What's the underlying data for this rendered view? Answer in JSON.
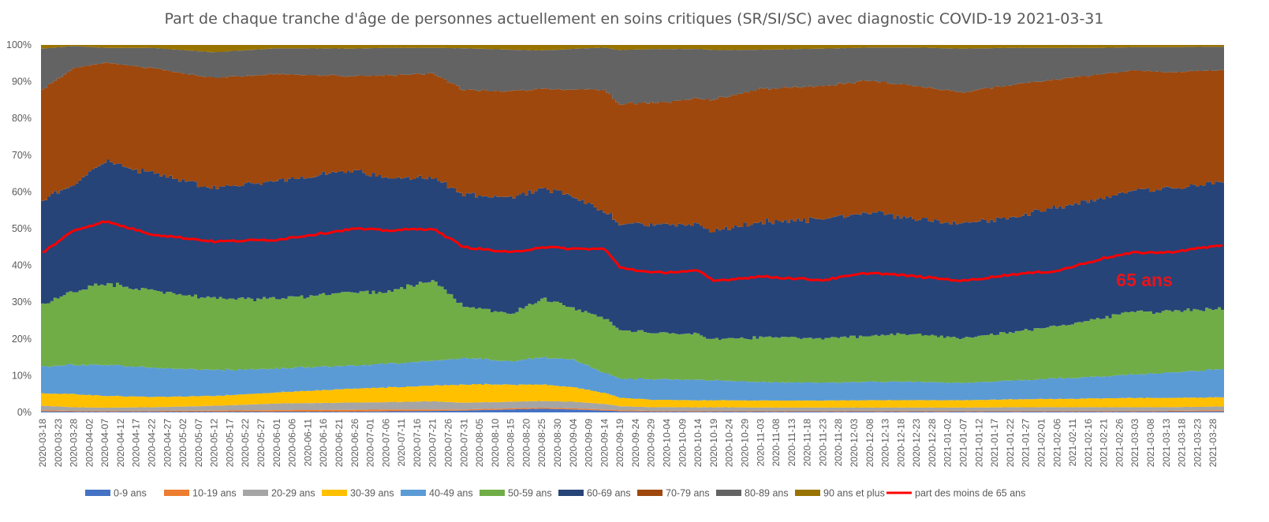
{
  "chart_data": {
    "type": "area",
    "stacked": "percent",
    "title": "Part de chaque tranche d'âge de personnes actuellement en soins critiques (SR/SI/SC) avec diagnostic COVID-19 2021-03-31",
    "xlabel": "",
    "ylabel": "",
    "ylim": [
      0,
      100
    ],
    "y_ticks": [
      "0%",
      "10%",
      "20%",
      "30%",
      "40%",
      "50%",
      "60%",
      "70%",
      "80%",
      "90%",
      "100%"
    ],
    "x_start": "2020-03-18",
    "x_end": "2021-03-31",
    "x_step_days": 5,
    "x_ticks": [
      "2020-03-18",
      "2020-03-23",
      "2020-03-28",
      "2020-04-02",
      "2020-04-07",
      "2020-04-12",
      "2020-04-17",
      "2020-04-22",
      "2020-04-27",
      "2020-05-02",
      "2020-05-07",
      "2020-05-12",
      "2020-05-17",
      "2020-05-22",
      "2020-05-27",
      "2020-06-01",
      "2020-06-06",
      "2020-06-11",
      "2020-06-16",
      "2020-06-21",
      "2020-06-26",
      "2020-07-01",
      "2020-07-06",
      "2020-07-11",
      "2020-07-16",
      "2020-07-21",
      "2020-07-26",
      "2020-07-31",
      "2020-08-05",
      "2020-08-10",
      "2020-08-15",
      "2020-08-20",
      "2020-08-25",
      "2020-08-30",
      "2020-09-04",
      "2020-09-09",
      "2020-09-14",
      "2020-09-19",
      "2020-09-24",
      "2020-09-29",
      "2020-10-04",
      "2020-10-09",
      "2020-10-14",
      "2020-10-19",
      "2020-10-24",
      "2020-10-29",
      "2020-11-03",
      "2020-11-08",
      "2020-11-13",
      "2020-11-18",
      "2020-11-23",
      "2020-11-28",
      "2020-12-03",
      "2020-12-08",
      "2020-12-13",
      "2020-12-18",
      "2020-12-23",
      "2020-12-28",
      "2021-01-02",
      "2021-01-07",
      "2021-01-12",
      "2021-01-17",
      "2021-01-22",
      "2021-01-27",
      "2021-02-01",
      "2021-02-06",
      "2021-02-11",
      "2021-02-16",
      "2021-02-21",
      "2021-02-26",
      "2021-03-03",
      "2021-03-08",
      "2021-03-13",
      "2021-03-18",
      "2021-03-23",
      "2021-03-28"
    ],
    "keypoint_dates": [
      "2020-03-18",
      "2020-03-28",
      "2020-04-07",
      "2020-04-22",
      "2020-05-12",
      "2020-06-01",
      "2020-06-26",
      "2020-07-06",
      "2020-07-21",
      "2020-07-31",
      "2020-08-15",
      "2020-08-25",
      "2020-09-04",
      "2020-09-14",
      "2020-09-19",
      "2020-09-29",
      "2020-10-14",
      "2020-10-19",
      "2020-11-03",
      "2020-11-23",
      "2020-12-08",
      "2020-12-23",
      "2021-01-07",
      "2021-01-22",
      "2021-02-06",
      "2021-02-21",
      "2021-03-03",
      "2021-03-13",
      "2021-03-31"
    ],
    "series": [
      {
        "name": "0-9 ans",
        "color": "#4472c4",
        "type": "area",
        "values": [
          0.3,
          0.2,
          0.2,
          0.2,
          0.2,
          0.2,
          0.2,
          0.3,
          0.4,
          0.5,
          0.8,
          1.0,
          0.8,
          0.5,
          0.3,
          0.2,
          0.2,
          0.2,
          0.2,
          0.2,
          0.2,
          0.2,
          0.2,
          0.2,
          0.2,
          0.2,
          0.2,
          0.2,
          0.3
        ]
      },
      {
        "name": "10-19 ans",
        "color": "#ed7d31",
        "type": "area",
        "values": [
          0.3,
          0.2,
          0.2,
          0.2,
          0.3,
          0.4,
          0.5,
          0.5,
          0.4,
          0.3,
          0.3,
          0.3,
          0.3,
          0.3,
          0.3,
          0.2,
          0.2,
          0.2,
          0.2,
          0.2,
          0.2,
          0.2,
          0.2,
          0.2,
          0.2,
          0.2,
          0.2,
          0.2,
          0.3
        ]
      },
      {
        "name": "20-29 ans",
        "color": "#a5a5a5",
        "type": "area",
        "values": [
          1.2,
          1.0,
          0.9,
          1.0,
          1.3,
          1.8,
          2.0,
          2.0,
          2.2,
          1.8,
          1.8,
          1.8,
          1.8,
          1.5,
          1.1,
          1.0,
          1.0,
          1.0,
          0.9,
          0.9,
          0.9,
          0.9,
          0.9,
          1.0,
          1.0,
          1.0,
          1.0,
          1.0,
          1.0
        ]
      },
      {
        "name": "30-39 ans",
        "color": "#ffc000",
        "type": "area",
        "values": [
          3.4,
          3.6,
          3.2,
          2.8,
          2.7,
          3.0,
          3.8,
          4.0,
          4.3,
          5.0,
          4.7,
          4.5,
          4.0,
          3.0,
          2.3,
          2.0,
          1.9,
          1.9,
          1.9,
          1.9,
          2.0,
          2.0,
          2.0,
          2.1,
          2.2,
          2.4,
          2.5,
          2.5,
          2.5
        ]
      },
      {
        "name": "40-49 ans",
        "color": "#5b9bd5",
        "type": "area",
        "values": [
          7.3,
          8.0,
          8.5,
          8.0,
          7.0,
          6.5,
          6.3,
          6.5,
          6.7,
          7.2,
          6.3,
          7.4,
          7.5,
          5.5,
          5.2,
          5.5,
          5.6,
          5.4,
          5.0,
          4.8,
          5.0,
          5.0,
          4.7,
          5.0,
          5.5,
          6.0,
          6.3,
          6.8,
          7.7
        ]
      },
      {
        "name": "50-59 ans",
        "color": "#70ad47",
        "type": "area",
        "values": [
          17.0,
          20.0,
          22.0,
          21.0,
          19.5,
          19.0,
          20.0,
          19.5,
          22.0,
          14.0,
          13.0,
          16.0,
          14.0,
          15.0,
          13.0,
          12.5,
          12.5,
          11.0,
          12.0,
          12.0,
          12.5,
          13.0,
          12.0,
          13.0,
          14.0,
          16.0,
          17.0,
          16.5,
          16.5
        ]
      },
      {
        "name": "60-69 ans",
        "color": "#264478",
        "type": "area",
        "values": [
          28.5,
          29.0,
          33.0,
          32.0,
          30.0,
          32.0,
          33.0,
          31.0,
          28.0,
          30.5,
          31.5,
          30.0,
          30.5,
          29.0,
          29.0,
          29.0,
          30.0,
          29.5,
          31.0,
          32.0,
          33.5,
          31.0,
          31.0,
          31.0,
          32.0,
          32.5,
          32.5,
          33.0,
          34.5
        ]
      },
      {
        "name": "70-79 ans",
        "color": "#9e480e",
        "type": "area",
        "values": [
          30.0,
          31.5,
          27.0,
          28.5,
          30.0,
          29.0,
          25.5,
          28.0,
          28.0,
          28.5,
          29.0,
          27.0,
          29.0,
          33.0,
          32.5,
          32.5,
          34.0,
          35.5,
          36.0,
          36.0,
          35.5,
          36.0,
          36.0,
          35.5,
          34.5,
          33.5,
          32.5,
          31.5,
          30.5
        ]
      },
      {
        "name": "80-89 ans",
        "color": "#636363",
        "type": "area",
        "values": [
          11.0,
          6.0,
          4.0,
          5.5,
          7.0,
          7.0,
          7.5,
          7.5,
          7.0,
          11.3,
          11.3,
          10.5,
          11.0,
          11.5,
          14.5,
          14.5,
          13.5,
          13.5,
          10.5,
          10.0,
          9.0,
          10.5,
          11.8,
          10.0,
          8.5,
          7.0,
          6.3,
          6.8,
          6.3
        ]
      },
      {
        "name": "90 ans et plus",
        "color": "#997300",
        "type": "area",
        "values": [
          1.0,
          0.3,
          0.8,
          0.8,
          2.0,
          0.9,
          1.0,
          0.8,
          0.8,
          0.9,
          1.3,
          1.5,
          1.1,
          0.7,
          1.4,
          1.1,
          1.1,
          1.4,
          1.3,
          1.0,
          0.7,
          0.7,
          1.0,
          0.8,
          0.8,
          0.8,
          0.6,
          0.6,
          0.5
        ]
      },
      {
        "name": "part des moins de 65 ans",
        "color": "#ff0000",
        "type": "line",
        "values": [
          43.5,
          49.5,
          52.0,
          48.5,
          46.5,
          47.0,
          50.0,
          49.5,
          50.0,
          45.0,
          43.5,
          45.0,
          44.5,
          44.5,
          39.5,
          38.0,
          38.5,
          35.8,
          37.0,
          36.0,
          38.0,
          37.0,
          35.8,
          37.5,
          38.5,
          42.0,
          43.5,
          43.5,
          45.5
        ]
      }
    ],
    "annotations": [
      {
        "text": "65 ans",
        "x": "2021-03-06",
        "y": 36
      }
    ],
    "grid": false,
    "legend_position": "bottom"
  }
}
